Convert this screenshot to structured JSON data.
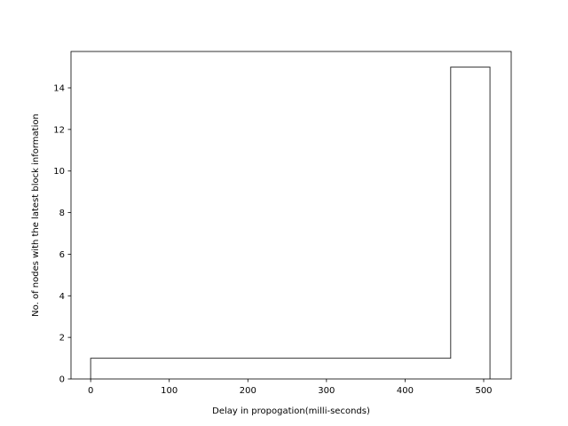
{
  "chart_data": {
    "type": "step",
    "title": "",
    "xlabel": "Delay in propogation(milli-seconds)",
    "ylabel": "No. of nodes with the latest block information",
    "xlim": [
      -25,
      535
    ],
    "ylim": [
      0,
      15.75
    ],
    "xticks": [
      0,
      100,
      200,
      300,
      400,
      500
    ],
    "yticks": [
      0,
      2,
      4,
      6,
      8,
      10,
      12,
      14
    ],
    "series": [
      {
        "color": "#333333",
        "points": [
          [
            0,
            0
          ],
          [
            0,
            1
          ],
          [
            458,
            1
          ],
          [
            458,
            15
          ],
          [
            508,
            15
          ],
          [
            508,
            0
          ]
        ]
      }
    ],
    "grid": false,
    "legend": "none"
  }
}
